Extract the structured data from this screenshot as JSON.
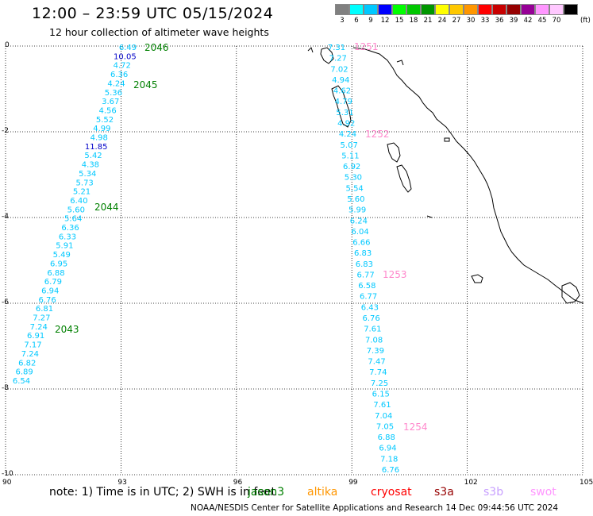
{
  "header": {
    "title": "12:00 – 23:59 UTC 05/15/2024",
    "subtitle": "12 hour collection of altimeter wave heights"
  },
  "legend": {
    "unit": "(ft)",
    "items": [
      {
        "label": "3",
        "color": "#808080"
      },
      {
        "label": "6",
        "color": "#00ffff"
      },
      {
        "label": "9",
        "color": "#00c8ff"
      },
      {
        "label": "12",
        "color": "#0000ff"
      },
      {
        "label": "15",
        "color": "#00ff00"
      },
      {
        "label": "18",
        "color": "#00c800"
      },
      {
        "label": "21",
        "color": "#009600"
      },
      {
        "label": "24",
        "color": "#ffff00"
      },
      {
        "label": "27",
        "color": "#ffc800"
      },
      {
        "label": "30",
        "color": "#ff9600"
      },
      {
        "label": "33",
        "color": "#ff0000"
      },
      {
        "label": "36",
        "color": "#c80000"
      },
      {
        "label": "39",
        "color": "#960000"
      },
      {
        "label": "42",
        "color": "#960096"
      },
      {
        "label": "45",
        "color": "#ff96ff"
      },
      {
        "label": "70",
        "color": "#ffc8ff"
      },
      {
        "label": "",
        "color": "#000000"
      }
    ]
  },
  "map": {
    "x_ticks": [
      "90",
      "93",
      "96",
      "99",
      "102",
      "105"
    ],
    "y_ticks": [
      "0",
      "-2",
      "-4",
      "-6",
      "-8",
      "-10"
    ]
  },
  "tracks": [
    {
      "color": "#00c8ff",
      "values": [
        "6.49",
        "4.72",
        "6.36",
        "4.24",
        "5.36",
        "3.67",
        "4.56",
        "5.52",
        "4.99",
        "4.98",
        "5.42",
        "4.38",
        "5.34",
        "5.73",
        "5.21",
        "6.40",
        "5.60",
        "5.64",
        "6.36",
        "6.33",
        "5.91",
        "5.49",
        "6.95",
        "6.88",
        "6.79",
        "6.94",
        "6.76",
        "6.81",
        "7.27",
        "7.24",
        "6.91",
        "7.17",
        "7.24",
        "6.82",
        "6.89",
        "6.54"
      ],
      "highlight": [
        {
          "after": 0,
          "value": "10.05"
        },
        {
          "after": 9,
          "value": "11.85"
        }
      ]
    },
    {
      "color": "#00c8ff",
      "values": [
        "7.31",
        "7.27",
        "7.02",
        "4.94",
        "4.62",
        "4.79",
        "5.31",
        "4.92",
        "4.24",
        "5.07",
        "5.11",
        "6.92",
        "5.30",
        "5.54",
        "5.60",
        "5.99",
        "6.24",
        "6.04",
        "6.66",
        "6.83",
        "6.83",
        "6.77",
        "6.58",
        "6.77",
        "6.43",
        "6.76",
        "7.61",
        "7.08",
        "7.39",
        "7.47",
        "7.74",
        "7.25",
        "6.15",
        "7.61",
        "7.04",
        "7.05",
        "6.88",
        "6.94",
        "7.18",
        "6.76"
      ]
    }
  ],
  "pass_labels": [
    {
      "text": "2046",
      "color": "#008000"
    },
    {
      "text": "2045",
      "color": "#008000"
    },
    {
      "text": "2044",
      "color": "#008000"
    },
    {
      "text": "2043",
      "color": "#008000"
    },
    {
      "text": "1251",
      "color": "#ff88cc"
    },
    {
      "text": "1252",
      "color": "#ff88cc"
    },
    {
      "text": "1253",
      "color": "#ff88cc"
    },
    {
      "text": "1254",
      "color": "#ff88cc"
    }
  ],
  "note": {
    "prefix": "note: 1) Time is in UTC; 2) SWH is in feet",
    "satellites": [
      {
        "name": "jason3",
        "color": "#008000"
      },
      {
        "name": "altika",
        "color": "#ff9600"
      },
      {
        "name": "cryosat",
        "color": "#ff0000"
      },
      {
        "name": "s3a",
        "color": "#960000"
      },
      {
        "name": "s3b",
        "color": "#c8a0ff"
      },
      {
        "name": "swot",
        "color": "#ff96ff"
      }
    ]
  },
  "footer": "NOAA/NESDIS Center for Satellite Applications and Research   14 Dec 09:44:56 UTC 2024"
}
